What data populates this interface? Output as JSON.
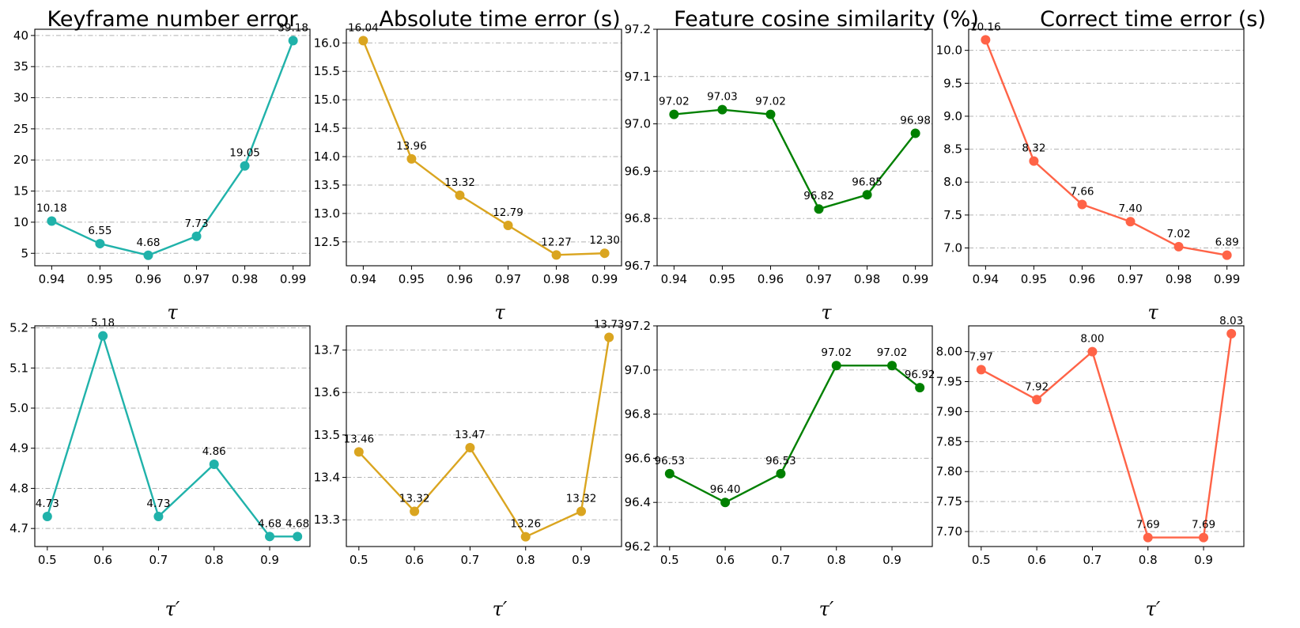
{
  "chart_data": [
    {
      "type": "line",
      "title": "Keyframe number error",
      "xlabel": "τ",
      "color": "#20b2aa",
      "x": [
        0.94,
        0.95,
        0.96,
        0.97,
        0.98,
        0.99
      ],
      "values": [
        10.18,
        6.55,
        4.68,
        7.73,
        19.05,
        39.18
      ],
      "labels": [
        "10.18",
        "6.55",
        "4.68",
        "7.73",
        "19.05",
        "39.18"
      ],
      "xticks": [
        "0.94",
        "0.95",
        "0.96",
        "0.97",
        "0.98",
        "0.99"
      ],
      "yticks": [
        5,
        10,
        15,
        20,
        25,
        30,
        35,
        40
      ],
      "ytick_labels": [
        "5",
        "10",
        "15",
        "20",
        "25",
        "30",
        "35",
        "40"
      ],
      "xlim": [
        0.9365,
        0.9935
      ],
      "ylim": [
        3.0,
        41.0
      ],
      "grid": "y"
    },
    {
      "type": "line",
      "title": "Absolute time error (s)",
      "xlabel": "τ",
      "color": "#daa520",
      "x": [
        0.94,
        0.95,
        0.96,
        0.97,
        0.98,
        0.99
      ],
      "values": [
        16.04,
        13.96,
        13.32,
        12.79,
        12.27,
        12.3
      ],
      "labels": [
        "16.04",
        "13.96",
        "13.32",
        "12.79",
        "12.27",
        "12.30"
      ],
      "xticks": [
        "0.94",
        "0.95",
        "0.96",
        "0.97",
        "0.98",
        "0.99"
      ],
      "yticks": [
        12.5,
        13.0,
        13.5,
        14.0,
        14.5,
        15.0,
        15.5,
        16.0
      ],
      "ytick_labels": [
        "12.5",
        "13.0",
        "13.5",
        "14.0",
        "14.5",
        "15.0",
        "15.5",
        "16.0"
      ],
      "xlim": [
        0.9365,
        0.9935
      ],
      "ylim": [
        12.08,
        16.24
      ],
      "grid": "y"
    },
    {
      "type": "line",
      "title": "Feature cosine similarity (%)",
      "xlabel": "τ",
      "color": "#008000",
      "x": [
        0.94,
        0.95,
        0.96,
        0.97,
        0.98,
        0.99
      ],
      "values": [
        97.02,
        97.03,
        97.02,
        96.82,
        96.85,
        96.98
      ],
      "labels": [
        "97.02",
        "97.03",
        "97.02",
        "96.82",
        "96.85",
        "96.98"
      ],
      "xticks": [
        "0.94",
        "0.95",
        "0.96",
        "0.97",
        "0.98",
        "0.99"
      ],
      "yticks": [
        96.7,
        96.8,
        96.9,
        97.0,
        97.1,
        97.2
      ],
      "ytick_labels": [
        "96.7",
        "96.8",
        "96.9",
        "97.0",
        "97.1",
        "97.2"
      ],
      "xlim": [
        0.9365,
        0.9935
      ],
      "ylim": [
        96.7,
        97.2
      ],
      "grid": "y"
    },
    {
      "type": "line",
      "title": "Correct time error (s)",
      "xlabel": "τ",
      "color": "#ff6347",
      "x": [
        0.94,
        0.95,
        0.96,
        0.97,
        0.98,
        0.99
      ],
      "values": [
        10.16,
        8.32,
        7.66,
        7.4,
        7.02,
        6.89
      ],
      "labels": [
        "10.16",
        "8.32",
        "7.66",
        "7.40",
        "7.02",
        "6.89"
      ],
      "xticks": [
        "0.94",
        "0.95",
        "0.96",
        "0.97",
        "0.98",
        "0.99"
      ],
      "yticks": [
        7.0,
        7.5,
        8.0,
        8.5,
        9.0,
        9.5,
        10.0
      ],
      "ytick_labels": [
        "7.0",
        "7.5",
        "8.0",
        "8.5",
        "9.0",
        "9.5",
        "10.0"
      ],
      "xlim": [
        0.9365,
        0.9935
      ],
      "ylim": [
        6.73,
        10.32
      ],
      "grid": "y"
    },
    {
      "type": "line",
      "xlabel": "τ′",
      "color": "#20b2aa",
      "x": [
        0.5,
        0.6,
        0.7,
        0.8,
        0.9,
        0.95
      ],
      "values": [
        4.73,
        5.18,
        4.73,
        4.86,
        4.68,
        4.68
      ],
      "labels": [
        "4.73",
        "5.18",
        "4.73",
        "4.86",
        "4.68",
        "4.68"
      ],
      "xticks": [
        "0.5",
        "0.6",
        "0.7",
        "0.8",
        "0.9"
      ],
      "yticks": [
        4.7,
        4.8,
        4.9,
        5.0,
        5.1,
        5.2
      ],
      "ytick_labels": [
        "4.7",
        "4.8",
        "4.9",
        "5.0",
        "5.1",
        "5.2"
      ],
      "xlim": [
        0.4775,
        0.9725
      ],
      "ylim": [
        4.655,
        5.205
      ],
      "grid": "y"
    },
    {
      "type": "line",
      "xlabel": "τ′",
      "color": "#daa520",
      "x": [
        0.5,
        0.6,
        0.7,
        0.8,
        0.9,
        0.95
      ],
      "values": [
        13.46,
        13.32,
        13.47,
        13.26,
        13.32,
        13.73
      ],
      "labels": [
        "13.46",
        "13.32",
        "13.47",
        "13.26",
        "13.32",
        "13.73"
      ],
      "xticks": [
        "0.5",
        "0.6",
        "0.7",
        "0.8",
        "0.9"
      ],
      "yticks": [
        13.3,
        13.4,
        13.5,
        13.6,
        13.7
      ],
      "ytick_labels": [
        "13.3",
        "13.4",
        "13.5",
        "13.6",
        "13.7"
      ],
      "xlim": [
        0.4775,
        0.9725
      ],
      "ylim": [
        13.237,
        13.757
      ],
      "grid": "y"
    },
    {
      "type": "line",
      "xlabel": "τ′",
      "color": "#008000",
      "x": [
        0.5,
        0.6,
        0.7,
        0.8,
        0.9,
        0.95
      ],
      "values": [
        96.53,
        96.4,
        96.53,
        97.02,
        97.02,
        96.92
      ],
      "labels": [
        "96.53",
        "96.40",
        "96.53",
        "97.02",
        "97.02",
        "96.92"
      ],
      "xticks": [
        "0.5",
        "0.6",
        "0.7",
        "0.8",
        "0.9"
      ],
      "yticks": [
        96.2,
        96.4,
        96.6,
        96.8,
        97.0,
        97.2
      ],
      "ytick_labels": [
        "96.2",
        "96.4",
        "96.6",
        "96.8",
        "97.0",
        "97.2"
      ],
      "xlim": [
        0.4775,
        0.9725
      ],
      "ylim": [
        96.2,
        97.2
      ],
      "grid": "y"
    },
    {
      "type": "line",
      "xlabel": "τ′",
      "color": "#ff6347",
      "x": [
        0.5,
        0.6,
        0.7,
        0.8,
        0.9,
        0.95
      ],
      "values": [
        7.97,
        7.92,
        8.0,
        7.69,
        7.69,
        8.03
      ],
      "labels": [
        "7.97",
        "7.92",
        "8.00",
        "7.69",
        "7.69",
        "8.03"
      ],
      "xticks": [
        "0.5",
        "0.6",
        "0.7",
        "0.8",
        "0.9"
      ],
      "yticks": [
        7.7,
        7.75,
        7.8,
        7.85,
        7.9,
        7.95,
        8.0
      ],
      "ytick_labels": [
        "7.70",
        "7.75",
        "7.80",
        "7.85",
        "7.90",
        "7.95",
        "8.00"
      ],
      "xlim": [
        0.4775,
        0.9725
      ],
      "ylim": [
        7.675,
        8.043
      ],
      "grid": "y"
    }
  ]
}
